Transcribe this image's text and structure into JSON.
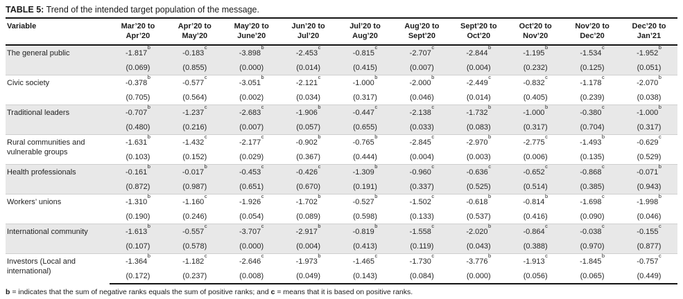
{
  "table": {
    "title_label": "TABLE 5:",
    "title_text": " Trend of the intended target population of the message.",
    "variable_header": "Variable",
    "period_columns": [
      [
        "Mar’20 to",
        "Apr’20"
      ],
      [
        "Apr’20 to",
        "May’20"
      ],
      [
        "May’20 to",
        "June’20"
      ],
      [
        "Jun’20 to",
        "Jul’20"
      ],
      [
        "Jul’20 to",
        "Aug’20"
      ],
      [
        "Aug’20 to",
        "Sept’20"
      ],
      [
        "Sept’20 to",
        "Oct’20"
      ],
      [
        "Oct’20 to",
        "Nov’20"
      ],
      [
        "Nov’20 to",
        "Dec’20"
      ],
      [
        "Dec’20 to",
        "Jan’21"
      ]
    ],
    "rows": [
      {
        "variable": "The general public",
        "shaded": true,
        "values": [
          [
            "-1.817",
            "b"
          ],
          [
            "-0.183",
            "c"
          ],
          [
            "-3.898",
            "b"
          ],
          [
            "-2.453",
            "c"
          ],
          [
            "-0.815",
            "c"
          ],
          [
            "-2.707",
            "c"
          ],
          [
            "-2.844",
            "b"
          ],
          [
            "-1.195",
            "b"
          ],
          [
            "-1.534",
            "c"
          ],
          [
            "-1.952",
            "b"
          ]
        ],
        "pvalues": [
          "(0.069)",
          "(0.855)",
          "(0.000)",
          "(0.014)",
          "(0.415)",
          "(0.007)",
          "(0.004)",
          "(0.232)",
          "(0.125)",
          "(0.051)"
        ]
      },
      {
        "variable": "Civic society",
        "shaded": false,
        "values": [
          [
            "-0.378",
            "b"
          ],
          [
            "-0.577",
            "c"
          ],
          [
            "-3.051",
            "b"
          ],
          [
            "-2.121",
            "c"
          ],
          [
            "-1.000",
            "b"
          ],
          [
            "-2.000",
            "b"
          ],
          [
            "-2.449",
            "c"
          ],
          [
            "-0.832",
            "c"
          ],
          [
            "-1.178",
            "c"
          ],
          [
            "-2.070",
            "b"
          ]
        ],
        "pvalues": [
          "(0.705)",
          "(0.564)",
          "(0.002)",
          "(0.034)",
          "(0.317)",
          "(0.046)",
          "(0.014)",
          "(0.405)",
          "(0.239)",
          "(0.038)"
        ]
      },
      {
        "variable": "Traditional leaders",
        "shaded": true,
        "values": [
          [
            "-0.707",
            "b"
          ],
          [
            "-1.237",
            "c"
          ],
          [
            "-2.683",
            "c"
          ],
          [
            "-1.906",
            "b"
          ],
          [
            "-0.447",
            "c"
          ],
          [
            "-2.138",
            "c"
          ],
          [
            "-1.732",
            "b"
          ],
          [
            "-1.000",
            "b"
          ],
          [
            "-0.380",
            "c"
          ],
          [
            "-1.000",
            "b"
          ]
        ],
        "pvalues": [
          "(0.480)",
          "(0.216)",
          "(0.007)",
          "(0.057)",
          "(0.655)",
          "(0.033)",
          "(0.083)",
          "(0.317)",
          "(0.704)",
          "(0.317)"
        ]
      },
      {
        "variable": "Rural communities and vulnerable groups",
        "shaded": false,
        "values": [
          [
            "-1.631",
            "b"
          ],
          [
            "-1.432",
            "c"
          ],
          [
            "-2.177",
            "c"
          ],
          [
            "-0.902",
            "b"
          ],
          [
            "-0.765",
            "b"
          ],
          [
            "-2.845",
            "c"
          ],
          [
            "-2.970",
            "b"
          ],
          [
            "-2.775",
            "c"
          ],
          [
            "-1.493",
            "b"
          ],
          [
            "-0.629",
            "c"
          ]
        ],
        "pvalues": [
          "(0.103)",
          "(0.152)",
          "(0.029)",
          "(0.367)",
          "(0.444)",
          "(0.004)",
          "(0.003)",
          "(0.006)",
          "(0.135)",
          "(0.529)"
        ]
      },
      {
        "variable": "Health professionals",
        "shaded": true,
        "values": [
          [
            "-0.161",
            "b"
          ],
          [
            "-0.017",
            "b"
          ],
          [
            "-0.453",
            "c"
          ],
          [
            "-0.426",
            "c"
          ],
          [
            "-1.309",
            "b"
          ],
          [
            "-0.960",
            "c"
          ],
          [
            "-0.636",
            "c"
          ],
          [
            "-0.652",
            "c"
          ],
          [
            "-0.868",
            "c"
          ],
          [
            "-0.071",
            "b"
          ]
        ],
        "pvalues": [
          "(0.872)",
          "(0.987)",
          "(0.651)",
          "(0.670)",
          "(0.191)",
          "(0.337)",
          "(0.525)",
          "(0.514)",
          "(0.385)",
          "(0.943)"
        ]
      },
      {
        "variable": "Workers’ unions",
        "shaded": false,
        "values": [
          [
            "-1.310",
            "b"
          ],
          [
            "-1.160",
            "c"
          ],
          [
            "-1.926",
            "c"
          ],
          [
            "-1.702",
            "b"
          ],
          [
            "-0.527",
            "b"
          ],
          [
            "-1.502",
            "c"
          ],
          [
            "-0.618",
            "b"
          ],
          [
            "-0.814",
            "b"
          ],
          [
            "-1.698",
            "c"
          ],
          [
            "-1.998",
            "b"
          ]
        ],
        "pvalues": [
          "(0.190)",
          "(0.246)",
          "(0.054)",
          "(0.089)",
          "(0.598)",
          "(0.133)",
          "(0.537)",
          "(0.416)",
          "(0.090)",
          "(0.046)"
        ]
      },
      {
        "variable": "International community",
        "shaded": true,
        "values": [
          [
            "-1.613",
            "b"
          ],
          [
            "-0.557",
            "c"
          ],
          [
            "-3.707",
            "c"
          ],
          [
            "-2.917",
            "b"
          ],
          [
            "-0.819",
            "b"
          ],
          [
            "-1.558",
            "c"
          ],
          [
            "-2.020",
            "b"
          ],
          [
            "-0.864",
            "c"
          ],
          [
            "-0.038",
            "c"
          ],
          [
            "-0.155",
            "c"
          ]
        ],
        "pvalues": [
          "(0.107)",
          "(0.578)",
          "(0.000)",
          "(0.004)",
          "(0.413)",
          "(0.119)",
          "(0.043)",
          "(0.388)",
          "(0.970)",
          "(0.877)"
        ]
      },
      {
        "variable": "Investors (Local and international)",
        "shaded": false,
        "values": [
          [
            "-1.364",
            "b"
          ],
          [
            "-1.182",
            "c"
          ],
          [
            "-2.646",
            "c"
          ],
          [
            "-1.973",
            "b"
          ],
          [
            "-1.465",
            "c"
          ],
          [
            "-1.730",
            "c"
          ],
          [
            "-3.776",
            "b"
          ],
          [
            "-1.913",
            "c"
          ],
          [
            "-1.845",
            "b"
          ],
          [
            "-0.757",
            "c"
          ]
        ],
        "pvalues": [
          "(0.172)",
          "(0.237)",
          "(0.008)",
          "(0.049)",
          "(0.143)",
          "(0.084)",
          "(0.000)",
          "(0.056)",
          "(0.065)",
          "(0.449)"
        ]
      }
    ],
    "footnote": {
      "b_label": "b",
      "b_text": " = indicates that the sum of negative ranks equals the sum of positive ranks; and ",
      "c_label": "c",
      "c_text": " = means that it is based on positive ranks."
    },
    "colors": {
      "shaded_row": "#e8e8e8",
      "rule": "#141414",
      "text": "#262626"
    }
  }
}
